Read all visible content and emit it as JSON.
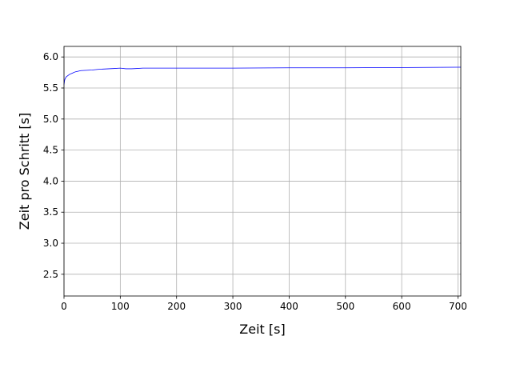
{
  "chart_data": {
    "type": "line",
    "xlabel": "Zeit [s]",
    "ylabel": "Zeit pro Schritt [s]",
    "xlim": [
      0,
      705
    ],
    "ylim": [
      2.15,
      6.17
    ],
    "xticks": [
      0,
      100,
      200,
      300,
      400,
      500,
      600,
      700
    ],
    "yticks": [
      2.5,
      3.0,
      3.5,
      4.0,
      4.5,
      5.0,
      5.5,
      6.0
    ],
    "xtick_labels": [
      "0",
      "100",
      "200",
      "300",
      "400",
      "500",
      "600",
      "700"
    ],
    "ytick_labels": [
      "2.5",
      "3.0",
      "3.5",
      "4.0",
      "4.5",
      "5.0",
      "5.5",
      "6.0"
    ],
    "grid": true,
    "series": [
      {
        "color": "#0000ff",
        "x": [
          0,
          1,
          2,
          4,
          7,
          10,
          15,
          20,
          30,
          40,
          50,
          60,
          70,
          80,
          90,
          100,
          110,
          120,
          130,
          140,
          150,
          200,
          250,
          300,
          400,
          500,
          600,
          700,
          705
        ],
        "y": [
          5.55,
          5.62,
          5.65,
          5.68,
          5.7,
          5.72,
          5.74,
          5.76,
          5.78,
          5.785,
          5.79,
          5.8,
          5.805,
          5.81,
          5.815,
          5.82,
          5.81,
          5.81,
          5.815,
          5.82,
          5.82,
          5.82,
          5.82,
          5.82,
          5.825,
          5.825,
          5.83,
          5.835,
          5.835
        ]
      }
    ]
  }
}
